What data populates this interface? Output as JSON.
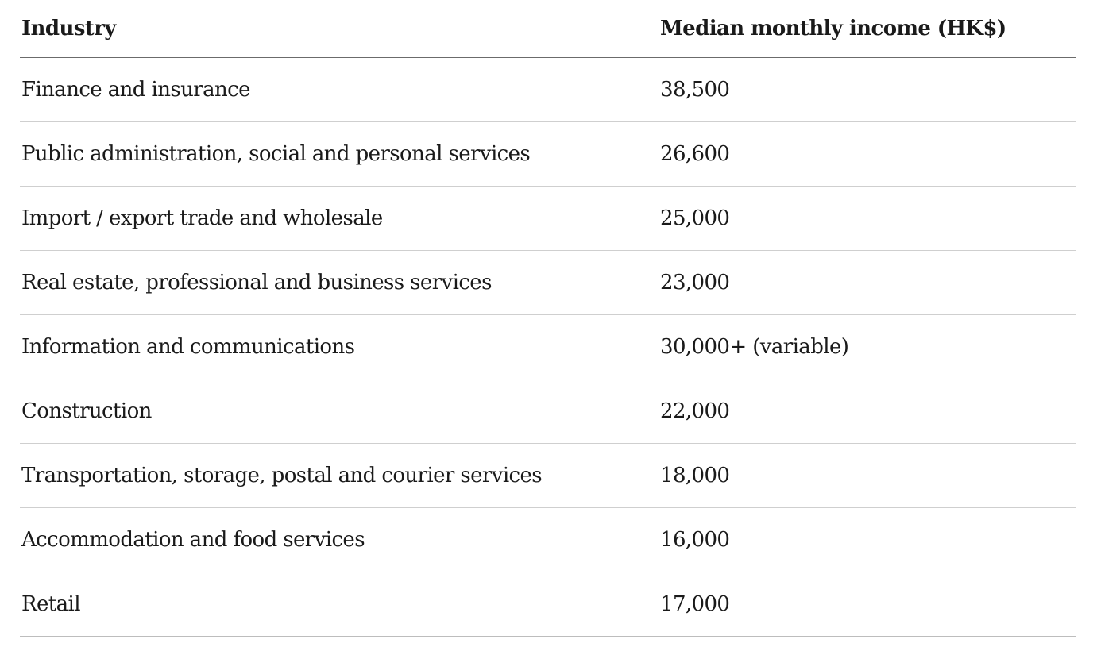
{
  "table": {
    "headers": {
      "industry": "Industry",
      "income": "Median monthly income (HK$)"
    },
    "rows": [
      {
        "industry": "Finance and insurance",
        "income": "38,500"
      },
      {
        "industry": "Public administration, social and personal services",
        "income": "26,600"
      },
      {
        "industry": "Import / export trade and wholesale",
        "income": "25,000"
      },
      {
        "industry": "Real estate, professional and business services",
        "income": "23,000"
      },
      {
        "industry": "Information and communications",
        "income": "30,000+ (variable)"
      },
      {
        "industry": "Construction",
        "income": "22,000"
      },
      {
        "industry": "Transportation, storage, postal and courier services",
        "income": "18,000"
      },
      {
        "industry": "Accommodation and food services",
        "income": "16,000"
      },
      {
        "industry": "Retail",
        "income": "17,000"
      }
    ]
  }
}
